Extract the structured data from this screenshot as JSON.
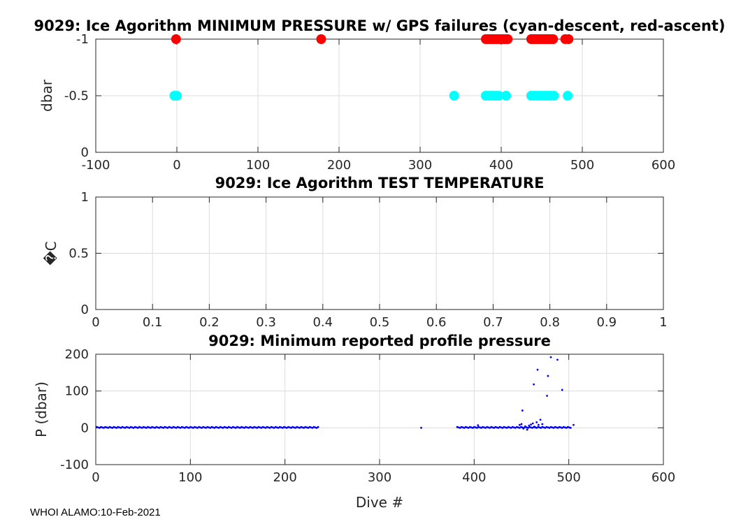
{
  "chart_data": [
    {
      "type": "scatter",
      "title": "9029: Ice Agorithm MINIMUM PRESSURE w/ GPS failures (cyan-descent, red-ascent)",
      "xlabel": "",
      "ylabel": "dbar",
      "xlim": [
        -100,
        600
      ],
      "ylim": [
        0,
        -1
      ],
      "y_reversed": true,
      "xticks": [
        -100,
        0,
        100,
        200,
        300,
        400,
        500,
        600
      ],
      "yticks": [
        0,
        -0.5,
        -1
      ],
      "ytick_labels": [
        "0",
        "-0.5",
        "-1"
      ],
      "grid": true,
      "series": [
        {
          "name": "descent",
          "color": "#00ffff",
          "x": [
            -3,
            0,
            342,
            381,
            385,
            389,
            393,
            397,
            406,
            437,
            441,
            445,
            449,
            453,
            457,
            461,
            465,
            482
          ],
          "y": [
            -0.5,
            -0.5,
            -0.5,
            -0.5,
            -0.5,
            -0.5,
            -0.5,
            -0.5,
            -0.5,
            -0.5,
            -0.5,
            -0.5,
            -0.5,
            -0.5,
            -0.5,
            -0.5,
            -0.5,
            -0.5
          ]
        },
        {
          "name": "ascent",
          "color": "#ff0000",
          "x": [
            -1,
            178,
            381,
            384,
            387,
            390,
            393,
            396,
            399,
            402,
            405,
            408,
            437,
            440,
            443,
            446,
            449,
            452,
            455,
            458,
            461,
            464,
            479,
            483
          ],
          "y": [
            -1,
            -1,
            -1,
            -1,
            -1,
            -1,
            -1,
            -1,
            -1,
            -1,
            -1,
            -1,
            -1,
            -1,
            -1,
            -1,
            -1,
            -1,
            -1,
            -1,
            -1,
            -1,
            -1,
            -1
          ]
        }
      ]
    },
    {
      "type": "scatter",
      "title": "9029: Ice Agorithm TEST TEMPERATURE",
      "xlabel": "",
      "ylabel": "�C",
      "xlim": [
        0,
        1
      ],
      "ylim": [
        0,
        1
      ],
      "xticks": [
        0,
        0.1,
        0.2,
        0.3,
        0.4,
        0.5,
        0.6,
        0.7,
        0.8,
        0.9,
        1
      ],
      "xtick_labels": [
        "0",
        "0.1",
        "0.2",
        "0.3",
        "0.4",
        "0.5",
        "0.6",
        "0.7",
        "0.8",
        "0.9",
        "1"
      ],
      "yticks": [
        0,
        0.5,
        1
      ],
      "ytick_labels": [
        "0",
        "0.5",
        "1"
      ],
      "grid": true,
      "series": []
    },
    {
      "type": "scatter",
      "title": "9029: Minimum reported profile pressure",
      "xlabel": "Dive #",
      "ylabel": "P (dbar)",
      "xlim": [
        0,
        600
      ],
      "ylim": [
        -100,
        200
      ],
      "y_reversed": true,
      "xticks": [
        0,
        100,
        200,
        300,
        400,
        500,
        600
      ],
      "yticks": [
        -100,
        0,
        100,
        200
      ],
      "grid": true,
      "series": [
        {
          "name": "min pressure",
          "color": "#0000ff",
          "dense_ranges": [
            {
              "x_from": 1,
              "x_to": 235,
              "y": 1
            },
            {
              "x_from": 382,
              "x_to": 503,
              "y": 1
            }
          ],
          "x": [
            344,
            404,
            448,
            450,
            452,
            454,
            456,
            458,
            460,
            462,
            464,
            466,
            468,
            470,
            451,
            472,
            477,
            463,
            467,
            478,
            481,
            488,
            493,
            505
          ],
          "y": [
            0,
            7,
            8,
            10,
            -2,
            4,
            -5,
            6,
            9,
            12,
            3,
            15,
            8,
            22,
            47,
            10,
            87,
            118,
            158,
            141,
            192,
            185,
            103,
            8
          ]
        }
      ]
    }
  ],
  "footer": "WHOI ALAMO:10-Feb-2021"
}
